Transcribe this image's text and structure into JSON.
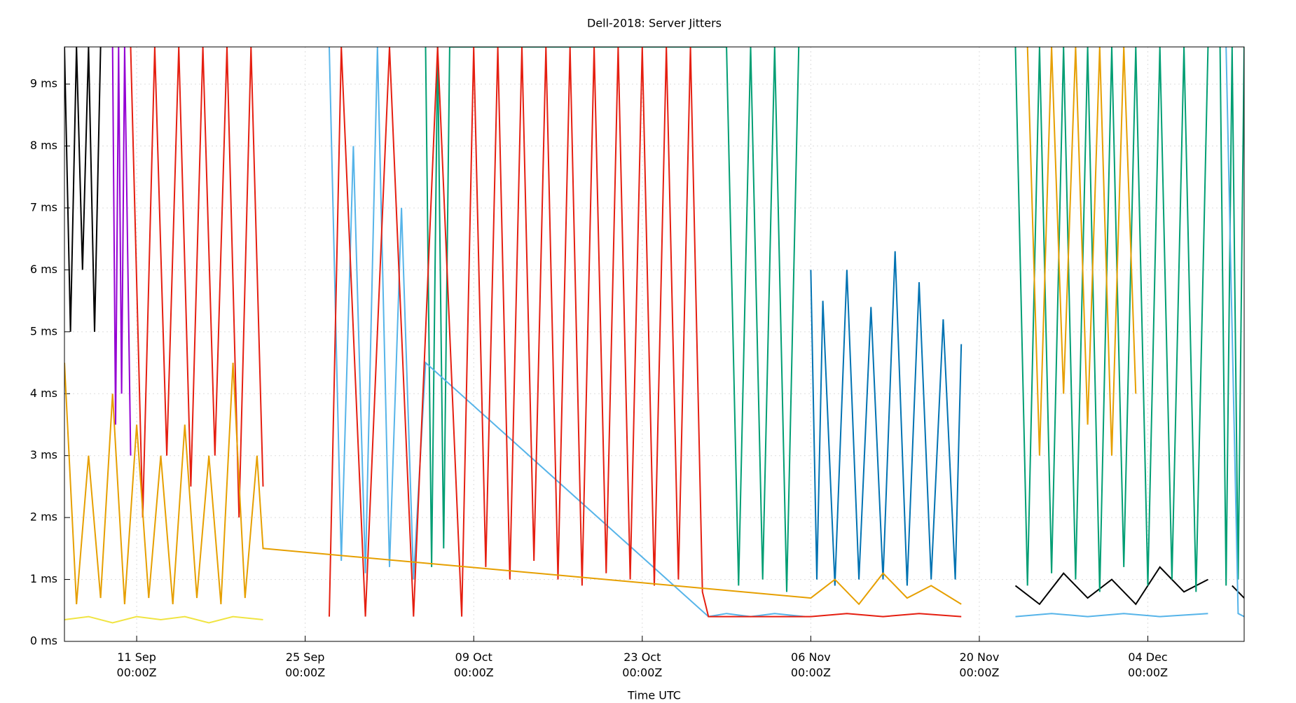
{
  "chart_data": {
    "type": "line",
    "title": "Dell-2018: Server Jitters",
    "xlabel": "Time UTC",
    "grid": true,
    "xlim": [
      "2018-09-05T00:00Z",
      "2018-12-12T00:00Z"
    ],
    "xticks": [
      {
        "value": "2018-09-11T00:00Z",
        "label": "11 Sep\n00:00Z"
      },
      {
        "value": "2018-09-25T00:00Z",
        "label": "25 Sep\n00:00Z"
      },
      {
        "value": "2018-10-09T00:00Z",
        "label": "09 Oct\n00:00Z"
      },
      {
        "value": "2018-10-23T00:00Z",
        "label": "23 Oct\n00:00Z"
      },
      {
        "value": "2018-11-06T00:00Z",
        "label": "06 Nov\n00:00Z"
      },
      {
        "value": "2018-11-20T00:00Z",
        "label": "20 Nov\n00:00Z"
      },
      {
        "value": "2018-12-04T00:00Z",
        "label": "04 Dec\n00:00Z"
      }
    ],
    "ylim": [
      0,
      9.6
    ],
    "yticks": [
      {
        "value": 0,
        "label": "0 ms"
      },
      {
        "value": 1,
        "label": "1 ms"
      },
      {
        "value": 2,
        "label": "2 ms"
      },
      {
        "value": 3,
        "label": "3 ms"
      },
      {
        "value": 4,
        "label": "4 ms"
      },
      {
        "value": 5,
        "label": "5 ms"
      },
      {
        "value": 6,
        "label": "6 ms"
      },
      {
        "value": 7,
        "label": "7 ms"
      },
      {
        "value": 8,
        "label": "8 ms"
      },
      {
        "value": 9,
        "label": "9 ms"
      }
    ],
    "series": [
      {
        "color": "#000000",
        "x": [
          "2018-09-05T00:00Z",
          "2018-09-05T12:00Z",
          "2018-09-06T00:00Z",
          "2018-09-06T12:00Z",
          "2018-09-07T00:00Z",
          "2018-09-07T12:00Z",
          "2018-09-08T00:00Z",
          "2018-11-20T00:00Z",
          "2018-11-23T00:00Z",
          "2018-11-25T00:00Z",
          "2018-11-27T00:00Z",
          "2018-11-29T00:00Z",
          "2018-12-01T00:00Z",
          "2018-12-03T00:00Z",
          "2018-12-05T00:00Z",
          "2018-12-07T00:00Z",
          "2018-12-09T00:00Z",
          "2018-12-10T00:00Z",
          "2018-12-11T00:00Z",
          "2018-12-12T00:00Z"
        ],
        "values": [
          9.6,
          5,
          9.6,
          6,
          9.6,
          5,
          9.6,
          null,
          0.9,
          0.6,
          1.1,
          0.7,
          1.0,
          0.6,
          1.2,
          0.8,
          1.0,
          null,
          0.9,
          0.7
        ]
      },
      {
        "color": "#9400d3",
        "x": [
          "2018-09-09T00:00Z",
          "2018-09-09T06:00Z",
          "2018-09-09T12:00Z",
          "2018-09-09T18:00Z",
          "2018-09-10T00:00Z",
          "2018-09-10T12:00Z"
        ],
        "values": [
          9.6,
          3.5,
          9.6,
          4,
          9.6,
          3
        ]
      },
      {
        "color": "#0072b2",
        "x": [
          "2018-11-06T00:00Z",
          "2018-11-06T12:00Z",
          "2018-11-07T00:00Z",
          "2018-11-08T00:00Z",
          "2018-11-09T00:00Z",
          "2018-11-10T00:00Z",
          "2018-11-11T00:00Z",
          "2018-11-12T00:00Z",
          "2018-11-13T00:00Z",
          "2018-11-14T00:00Z",
          "2018-11-15T00:00Z",
          "2018-11-16T00:00Z",
          "2018-11-17T00:00Z",
          "2018-11-18T00:00Z",
          "2018-11-18T12:00Z"
        ],
        "values": [
          6,
          1,
          5.5,
          0.9,
          6,
          1,
          5.4,
          1,
          6.3,
          0.9,
          5.8,
          1,
          5.2,
          1,
          4.8
        ]
      },
      {
        "color": "#009e73",
        "x": [
          "2018-10-05T00:00Z",
          "2018-10-05T12:00Z",
          "2018-10-06T00:00Z",
          "2018-10-06T12:00Z",
          "2018-10-07T00:00Z",
          "2018-10-30T00:00Z",
          "2018-10-31T00:00Z",
          "2018-11-01T00:00Z",
          "2018-11-02T00:00Z",
          "2018-11-03T00:00Z",
          "2018-11-04T00:00Z",
          "2018-11-05T00:00Z",
          "2018-11-20T00:00Z",
          "2018-11-23T00:00Z",
          "2018-11-24T00:00Z",
          "2018-11-25T00:00Z",
          "2018-11-26T00:00Z",
          "2018-11-27T00:00Z",
          "2018-11-28T00:00Z",
          "2018-11-29T00:00Z",
          "2018-11-30T00:00Z",
          "2018-12-01T00:00Z",
          "2018-12-02T00:00Z",
          "2018-12-03T00:00Z",
          "2018-12-04T00:00Z",
          "2018-12-05T00:00Z",
          "2018-12-06T00:00Z",
          "2018-12-07T00:00Z",
          "2018-12-08T00:00Z",
          "2018-12-09T00:00Z",
          "2018-12-09T12:00Z",
          "2018-12-10T00:00Z",
          "2018-12-10T12:00Z",
          "2018-12-11T00:00Z",
          "2018-12-11T12:00Z",
          "2018-12-12T00:00Z"
        ],
        "values": [
          9.6,
          1.2,
          9.6,
          1.5,
          9.6,
          9.6,
          0.9,
          9.6,
          1,
          9.6,
          0.8,
          9.6,
          null,
          9.6,
          0.9,
          9.6,
          1.1,
          9.6,
          1,
          9.6,
          0.8,
          9.6,
          1.2,
          9.6,
          0.9,
          9.6,
          1,
          9.6,
          0.8,
          9.6,
          null,
          9.6,
          0.9,
          9.6,
          1,
          9.6
        ]
      },
      {
        "color": "#56b4e9",
        "x": [
          "2018-09-27T00:00Z",
          "2018-09-28T00:00Z",
          "2018-09-29T00:00Z",
          "2018-09-30T00:00Z",
          "2018-10-01T00:00Z",
          "2018-10-02T00:00Z",
          "2018-10-03T00:00Z",
          "2018-10-04T00:00Z",
          "2018-10-05T00:00Z",
          "2018-10-28T12:00Z",
          "2018-10-30T00:00Z",
          "2018-11-01T00:00Z",
          "2018-11-03T00:00Z",
          "2018-11-05T12:00Z",
          "2018-11-20T00:00Z",
          "2018-11-23T00:00Z",
          "2018-11-26T00:00Z",
          "2018-11-29T00:00Z",
          "2018-12-02T00:00Z",
          "2018-12-05T00:00Z",
          "2018-12-09T00:00Z",
          "2018-12-10T00:00Z",
          "2018-12-10T12:00Z",
          "2018-12-11T12:00Z",
          "2018-12-12T00:00Z"
        ],
        "values": [
          9.6,
          1.3,
          8,
          1.1,
          9.6,
          1.2,
          7,
          1,
          4.5,
          0.4,
          0.45,
          0.4,
          0.45,
          0.4,
          null,
          0.4,
          0.45,
          0.4,
          0.45,
          0.4,
          0.45,
          null,
          9.6,
          0.45,
          0.4
        ]
      },
      {
        "color": "#e51e10",
        "x": [
          "2018-09-10T12:00Z",
          "2018-09-11T12:00Z",
          "2018-09-12T12:00Z",
          "2018-09-13T12:00Z",
          "2018-09-14T12:00Z",
          "2018-09-15T12:00Z",
          "2018-09-16T12:00Z",
          "2018-09-17T12:00Z",
          "2018-09-18T12:00Z",
          "2018-09-19T12:00Z",
          "2018-09-20T12:00Z",
          "2018-09-21T12:00Z",
          "2018-09-24T00:00Z",
          "2018-09-27T00:00Z",
          "2018-09-28T00:00Z",
          "2018-09-30T00:00Z",
          "2018-10-02T00:00Z",
          "2018-10-04T00:00Z",
          "2018-10-06T00:00Z",
          "2018-10-08T00:00Z",
          "2018-10-09T00:00Z",
          "2018-10-10T00:00Z",
          "2018-10-11T00:00Z",
          "2018-10-12T00:00Z",
          "2018-10-13T00:00Z",
          "2018-10-14T00:00Z",
          "2018-10-15T00:00Z",
          "2018-10-16T00:00Z",
          "2018-10-17T00:00Z",
          "2018-10-18T00:00Z",
          "2018-10-19T00:00Z",
          "2018-10-20T00:00Z",
          "2018-10-21T00:00Z",
          "2018-10-22T00:00Z",
          "2018-10-23T00:00Z",
          "2018-10-24T00:00Z",
          "2018-10-25T00:00Z",
          "2018-10-26T00:00Z",
          "2018-10-27T00:00Z",
          "2018-10-28T00:00Z",
          "2018-10-28T12:00Z",
          "2018-11-06T00:00Z",
          "2018-11-09T00:00Z",
          "2018-11-12T00:00Z",
          "2018-11-15T00:00Z",
          "2018-11-18T12:00Z"
        ],
        "values": [
          9.6,
          2,
          9.6,
          3,
          9.6,
          2.5,
          9.6,
          3,
          9.6,
          2,
          9.6,
          2.5,
          null,
          0.4,
          9.6,
          0.4,
          9.6,
          0.4,
          9.6,
          0.4,
          9.6,
          1.2,
          9.6,
          1,
          9.6,
          1.3,
          9.6,
          1,
          9.6,
          0.9,
          9.6,
          1.1,
          9.6,
          1,
          9.6,
          0.9,
          9.6,
          1,
          9.6,
          0.8,
          0.4,
          0.4,
          0.45,
          0.4,
          0.45,
          0.4
        ]
      },
      {
        "color": "#e69f00",
        "x": [
          "2018-09-05T00:00Z",
          "2018-09-06T00:00Z",
          "2018-09-07T00:00Z",
          "2018-09-08T00:00Z",
          "2018-09-09T00:00Z",
          "2018-09-10T00:00Z",
          "2018-09-11T00:00Z",
          "2018-09-12T00:00Z",
          "2018-09-13T00:00Z",
          "2018-09-14T00:00Z",
          "2018-09-15T00:00Z",
          "2018-09-16T00:00Z",
          "2018-09-17T00:00Z",
          "2018-09-18T00:00Z",
          "2018-09-19T00:00Z",
          "2018-09-20T00:00Z",
          "2018-09-21T00:00Z",
          "2018-09-21T12:00Z",
          "2018-11-06T00:00Z",
          "2018-11-08T00:00Z",
          "2018-11-10T00:00Z",
          "2018-11-12T00:00Z",
          "2018-11-14T00:00Z",
          "2018-11-16T00:00Z",
          "2018-11-18T12:00Z",
          "2018-11-20T00:00Z",
          "2018-11-24T00:00Z",
          "2018-11-25T00:00Z",
          "2018-11-26T00:00Z",
          "2018-11-27T00:00Z",
          "2018-11-28T00:00Z",
          "2018-11-29T00:00Z",
          "2018-11-30T00:00Z",
          "2018-12-01T00:00Z",
          "2018-12-02T00:00Z",
          "2018-12-03T00:00Z"
        ],
        "values": [
          4.5,
          0.6,
          3,
          0.7,
          4,
          0.6,
          3.5,
          0.7,
          3,
          0.6,
          3.5,
          0.7,
          3,
          0.6,
          4.5,
          0.7,
          3,
          1.5,
          0.7,
          1.0,
          0.6,
          1.1,
          0.7,
          0.9,
          0.6,
          null,
          9.6,
          3,
          9.6,
          4,
          9.6,
          3.5,
          9.6,
          3,
          9.6,
          4
        ]
      },
      {
        "color": "#f0e442",
        "x": [
          "2018-09-05T00:00Z",
          "2018-09-07T00:00Z",
          "2018-09-09T00:00Z",
          "2018-09-11T00:00Z",
          "2018-09-13T00:00Z",
          "2018-09-15T00:00Z",
          "2018-09-17T00:00Z",
          "2018-09-19T00:00Z",
          "2018-09-21T12:00Z"
        ],
        "values": [
          0.35,
          0.4,
          0.3,
          0.4,
          0.35,
          0.4,
          0.3,
          0.4,
          0.35
        ]
      }
    ]
  }
}
